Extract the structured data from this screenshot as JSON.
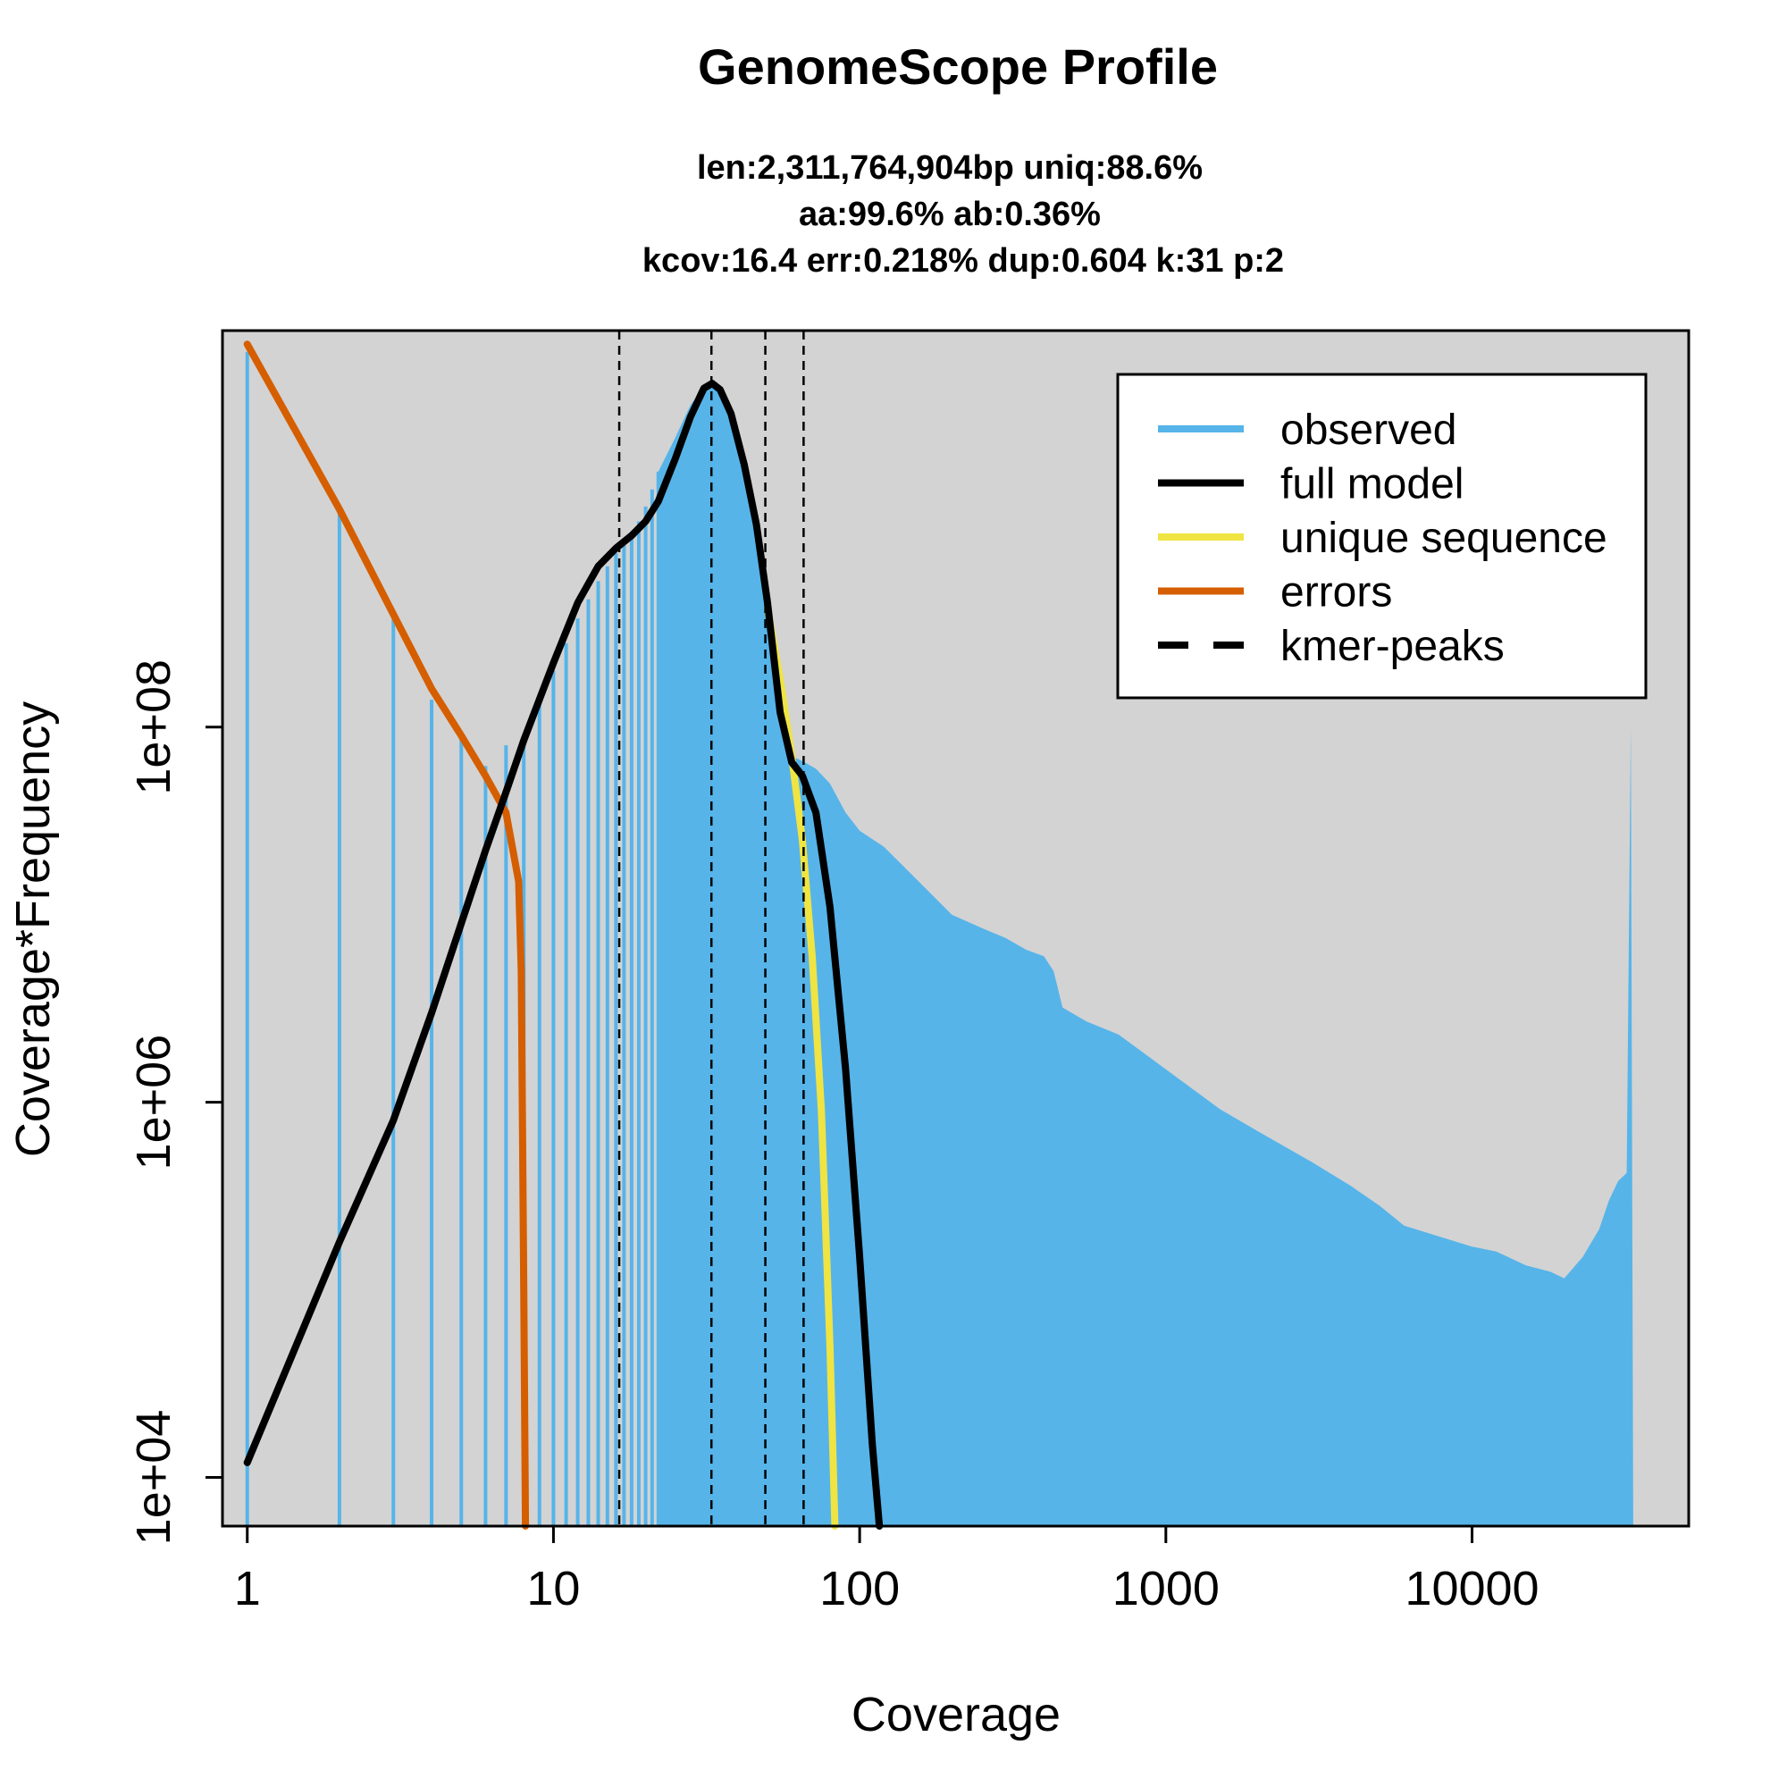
{
  "chart_data": {
    "type": "area",
    "title": "GenomeScope Profile",
    "subtitle_lines": [
      "len:2,311,764,904bp uniq:88.6%",
      "aa:99.6% ab:0.36%",
      "kcov:16.4 err:0.218%  dup:0.604  k:31 p:2"
    ],
    "xlabel": "Coverage",
    "ylabel": "Coverage*Frequency",
    "x_scale": "log",
    "y_scale": "log",
    "xlim": [
      0.83,
      51000
    ],
    "ylim": [
      5500,
      13000000000
    ],
    "x_ticks": [
      1,
      10,
      100,
      1000,
      10000
    ],
    "x_tick_labels": [
      "1",
      "10",
      "100",
      "1000",
      "10000"
    ],
    "y_ticks": [
      10000,
      1000000,
      100000000
    ],
    "y_tick_labels": [
      "1e+04",
      "1e+06",
      "1e+08"
    ],
    "grid": false,
    "legend_position": "top-right",
    "legend": [
      {
        "label": "observed",
        "color": "#56B4E9",
        "dash": false
      },
      {
        "label": "full model",
        "color": "#000000",
        "dash": false
      },
      {
        "label": "unique sequence",
        "color": "#F0E442",
        "dash": false
      },
      {
        "label": "errors",
        "color": "#D55E00",
        "dash": false
      },
      {
        "label": "kmer-peaks",
        "color": "#000000",
        "dash": true
      }
    ],
    "colors": {
      "plot_background": "#D3D3D3",
      "observed": "#56B4E9",
      "full_model": "#000000",
      "unique_sequence": "#F0E442",
      "errors": "#D55E00"
    },
    "kmer_peaks": [
      16.4,
      32.8,
      49.2,
      65.6
    ],
    "observed_bars": [
      {
        "x": 1,
        "y": 10000000000
      },
      {
        "x": 2,
        "y": 1400000000
      },
      {
        "x": 3,
        "y": 380000000
      },
      {
        "x": 4,
        "y": 140000000
      },
      {
        "x": 5,
        "y": 90000000
      },
      {
        "x": 6,
        "y": 62000000
      },
      {
        "x": 7,
        "y": 80000000
      },
      {
        "x": 8,
        "y": 85000000
      },
      {
        "x": 9,
        "y": 140000000
      },
      {
        "x": 10,
        "y": 200000000
      },
      {
        "x": 11,
        "y": 280000000
      },
      {
        "x": 12,
        "y": 380000000
      },
      {
        "x": 13,
        "y": 480000000
      },
      {
        "x": 14,
        "y": 600000000
      },
      {
        "x": 15,
        "y": 720000000
      },
      {
        "x": 16,
        "y": 850000000
      },
      {
        "x": 17,
        "y": 950000000
      },
      {
        "x": 18,
        "y": 1080000000
      },
      {
        "x": 19,
        "y": 1250000000
      },
      {
        "x": 20,
        "y": 1500000000
      },
      {
        "x": 21,
        "y": 1850000000
      },
      {
        "x": 22,
        "y": 2300000000
      }
    ],
    "observed_envelope": [
      {
        "x": 22,
        "y": 2300000000
      },
      {
        "x": 25,
        "y": 3500000000
      },
      {
        "x": 28,
        "y": 5200000000
      },
      {
        "x": 31,
        "y": 6500000000
      },
      {
        "x": 33,
        "y": 6900000000
      },
      {
        "x": 35,
        "y": 6500000000
      },
      {
        "x": 38,
        "y": 5000000000
      },
      {
        "x": 42,
        "y": 2800000000
      },
      {
        "x": 46,
        "y": 1300000000
      },
      {
        "x": 50,
        "y": 500000000
      },
      {
        "x": 55,
        "y": 140000000
      },
      {
        "x": 60,
        "y": 70000000
      },
      {
        "x": 65,
        "y": 66000000
      },
      {
        "x": 72,
        "y": 60000000
      },
      {
        "x": 80,
        "y": 50000000
      },
      {
        "x": 90,
        "y": 35000000
      },
      {
        "x": 100,
        "y": 28000000
      },
      {
        "x": 120,
        "y": 23000000
      },
      {
        "x": 150,
        "y": 16000000
      },
      {
        "x": 200,
        "y": 10000000
      },
      {
        "x": 250,
        "y": 8500000
      },
      {
        "x": 300,
        "y": 7500000
      },
      {
        "x": 350,
        "y": 6500000
      },
      {
        "x": 400,
        "y": 6000000
      },
      {
        "x": 430,
        "y": 5000000
      },
      {
        "x": 460,
        "y": 3200000
      },
      {
        "x": 550,
        "y": 2700000
      },
      {
        "x": 700,
        "y": 2300000
      },
      {
        "x": 1000,
        "y": 1500000
      },
      {
        "x": 1500,
        "y": 920000
      },
      {
        "x": 2000,
        "y": 700000
      },
      {
        "x": 3000,
        "y": 480000
      },
      {
        "x": 4000,
        "y": 360000
      },
      {
        "x": 5000,
        "y": 280000
      },
      {
        "x": 6000,
        "y": 220000
      },
      {
        "x": 8000,
        "y": 190000
      },
      {
        "x": 10000,
        "y": 170000
      },
      {
        "x": 12000,
        "y": 160000
      },
      {
        "x": 15000,
        "y": 135000
      },
      {
        "x": 18000,
        "y": 125000
      },
      {
        "x": 20000,
        "y": 115000
      },
      {
        "x": 23000,
        "y": 150000
      },
      {
        "x": 26000,
        "y": 210000
      },
      {
        "x": 28000,
        "y": 300000
      },
      {
        "x": 30000,
        "y": 380000
      },
      {
        "x": 32000,
        "y": 420000
      },
      {
        "x": 33000,
        "y": 100000000
      },
      {
        "x": 33600,
        "y": 5500
      }
    ],
    "series": [
      {
        "name": "full model",
        "color": "#000000",
        "points": [
          {
            "x": 1,
            "y": 12000
          },
          {
            "x": 2,
            "y": 180000
          },
          {
            "x": 3,
            "y": 800000
          },
          {
            "x": 4,
            "y": 3000000
          },
          {
            "x": 5,
            "y": 9000000
          },
          {
            "x": 6,
            "y": 22000000
          },
          {
            "x": 7,
            "y": 45000000
          },
          {
            "x": 8,
            "y": 85000000
          },
          {
            "x": 10,
            "y": 220000000
          },
          {
            "x": 12,
            "y": 460000000
          },
          {
            "x": 14,
            "y": 720000000
          },
          {
            "x": 16,
            "y": 900000000
          },
          {
            "x": 18,
            "y": 1050000000
          },
          {
            "x": 20,
            "y": 1250000000
          },
          {
            "x": 22,
            "y": 1600000000
          },
          {
            "x": 25,
            "y": 2700000000
          },
          {
            "x": 28,
            "y": 4500000000
          },
          {
            "x": 31,
            "y": 6400000000
          },
          {
            "x": 33,
            "y": 6800000000
          },
          {
            "x": 35,
            "y": 6300000000
          },
          {
            "x": 38,
            "y": 4700000000
          },
          {
            "x": 42,
            "y": 2500000000
          },
          {
            "x": 46,
            "y": 1200000000
          },
          {
            "x": 50,
            "y": 460000000
          },
          {
            "x": 55,
            "y": 120000000
          },
          {
            "x": 60,
            "y": 65000000
          },
          {
            "x": 65,
            "y": 55000000
          },
          {
            "x": 72,
            "y": 35000000
          },
          {
            "x": 80,
            "y": 11000000
          },
          {
            "x": 90,
            "y": 1500000
          },
          {
            "x": 100,
            "y": 150000
          },
          {
            "x": 110,
            "y": 15000
          },
          {
            "x": 116,
            "y": 5500
          }
        ]
      },
      {
        "name": "unique sequence",
        "color": "#F0E442",
        "points": [
          {
            "x": 50,
            "y": 430000000
          },
          {
            "x": 55,
            "y": 180000000
          },
          {
            "x": 60,
            "y": 70000000
          },
          {
            "x": 65,
            "y": 25000000
          },
          {
            "x": 70,
            "y": 6000000
          },
          {
            "x": 75,
            "y": 900000
          },
          {
            "x": 80,
            "y": 50000
          },
          {
            "x": 83,
            "y": 5500
          }
        ]
      },
      {
        "name": "errors",
        "color": "#D55E00",
        "points": [
          {
            "x": 1,
            "y": 11000000000
          },
          {
            "x": 2,
            "y": 1450000000
          },
          {
            "x": 3,
            "y": 400000000
          },
          {
            "x": 4,
            "y": 160000000
          },
          {
            "x": 5,
            "y": 90000000
          },
          {
            "x": 6,
            "y": 55000000
          },
          {
            "x": 7,
            "y": 35000000
          },
          {
            "x": 7.7,
            "y": 15000000
          },
          {
            "x": 7.85,
            "y": 5000000
          },
          {
            "x": 8.0,
            "y": 100000
          },
          {
            "x": 8.1,
            "y": 5500
          }
        ]
      }
    ]
  }
}
